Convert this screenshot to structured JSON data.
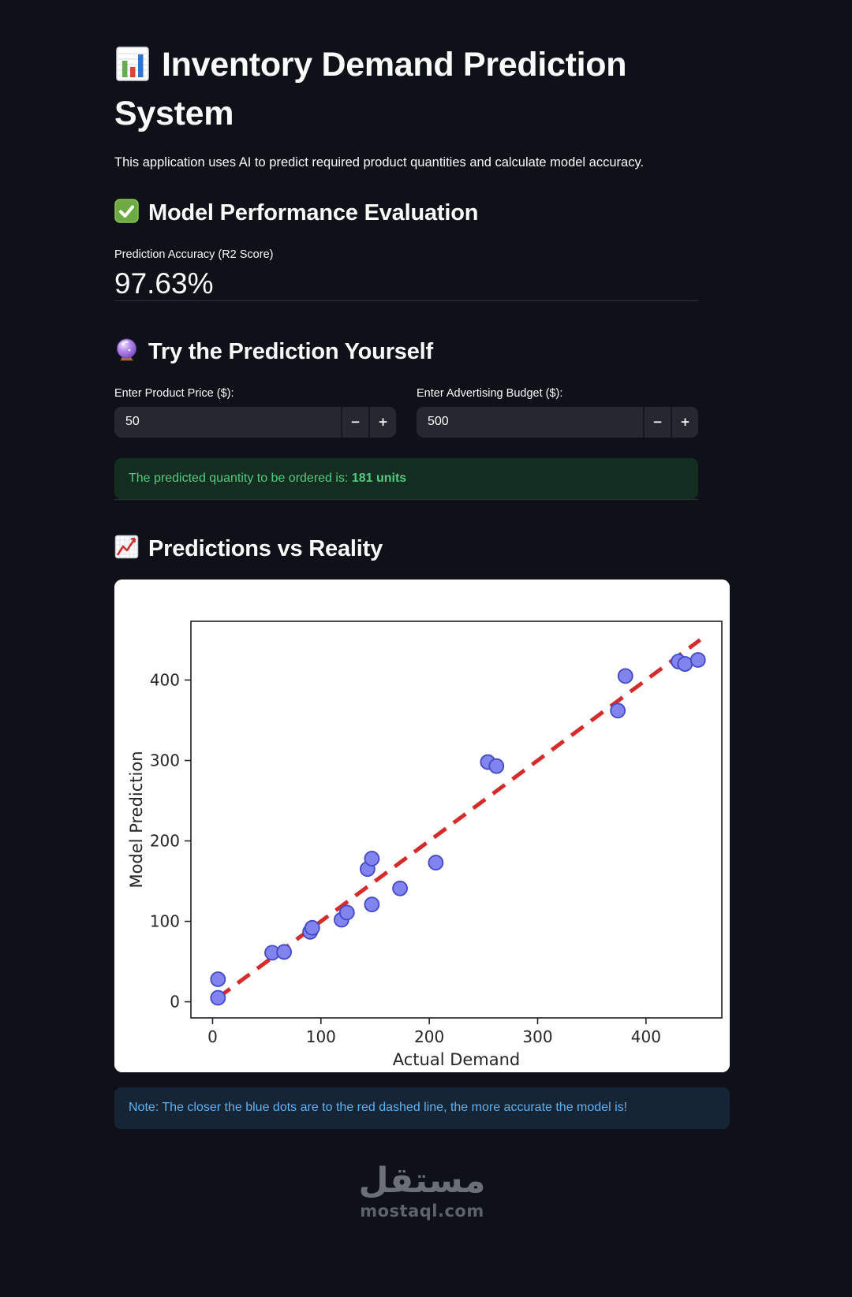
{
  "app": {
    "title": "Inventory Demand Prediction System",
    "subtitle": "This application uses AI to predict required product quantities and calculate model accuracy."
  },
  "performance": {
    "heading": "Model Performance Evaluation",
    "metric_label": "Prediction Accuracy (R2 Score)",
    "metric_value": "97.63%"
  },
  "try_prediction": {
    "heading": "Try the Prediction Yourself",
    "price_label": "Enter Product Price ($):",
    "price_value": "50",
    "budget_label": "Enter Advertising Budget ($):",
    "budget_value": "500",
    "stepper_minus": "−",
    "stepper_plus": "+",
    "result_prefix": "The predicted quantity to be ordered is: ",
    "result_value": "181 units"
  },
  "chart_section": {
    "heading": "Predictions vs Reality",
    "note": "Note: The closer the blue dots are to the red dashed line, the more accurate the model is!"
  },
  "chart_data": {
    "type": "scatter",
    "xlabel": "Actual Demand",
    "ylabel": "Model Prediction",
    "xlim": [
      -20,
      470
    ],
    "ylim": [
      -20,
      473
    ],
    "xticks": [
      0,
      100,
      200,
      300,
      400
    ],
    "yticks": [
      0,
      100,
      200,
      300,
      400
    ],
    "grid": false,
    "legend": "none",
    "points": [
      [
        5,
        28
      ],
      [
        5,
        5
      ],
      [
        55,
        61
      ],
      [
        66,
        62
      ],
      [
        90,
        87
      ],
      [
        92,
        92
      ],
      [
        119,
        102
      ],
      [
        124,
        111
      ],
      [
        143,
        165
      ],
      [
        147,
        178
      ],
      [
        147,
        121
      ],
      [
        173,
        141
      ],
      [
        206,
        173
      ],
      [
        254,
        298
      ],
      [
        262,
        293
      ],
      [
        374,
        362
      ],
      [
        381,
        405
      ],
      [
        430,
        423
      ],
      [
        436,
        420
      ],
      [
        448,
        425
      ]
    ],
    "point_color": "#8183ee",
    "point_edge_color": "#4149c6",
    "reference_line": {
      "from": [
        5,
        5
      ],
      "to": [
        450,
        450
      ],
      "style": "dashed",
      "color": "#d62b2b"
    },
    "axis_text_color": "#262626",
    "background": "#ffffff"
  },
  "footer": {
    "logo_text": "مستقل",
    "site": "mostaql.com"
  },
  "colors": {
    "page_background": "#0e1117",
    "text": "#fafafa",
    "input_background": "#262730",
    "success_background": "#132e21",
    "success_text": "#55ca7d",
    "info_background": "#152536",
    "info_text": "#5fb2f2",
    "watermark_gray": "#6a6f78"
  }
}
